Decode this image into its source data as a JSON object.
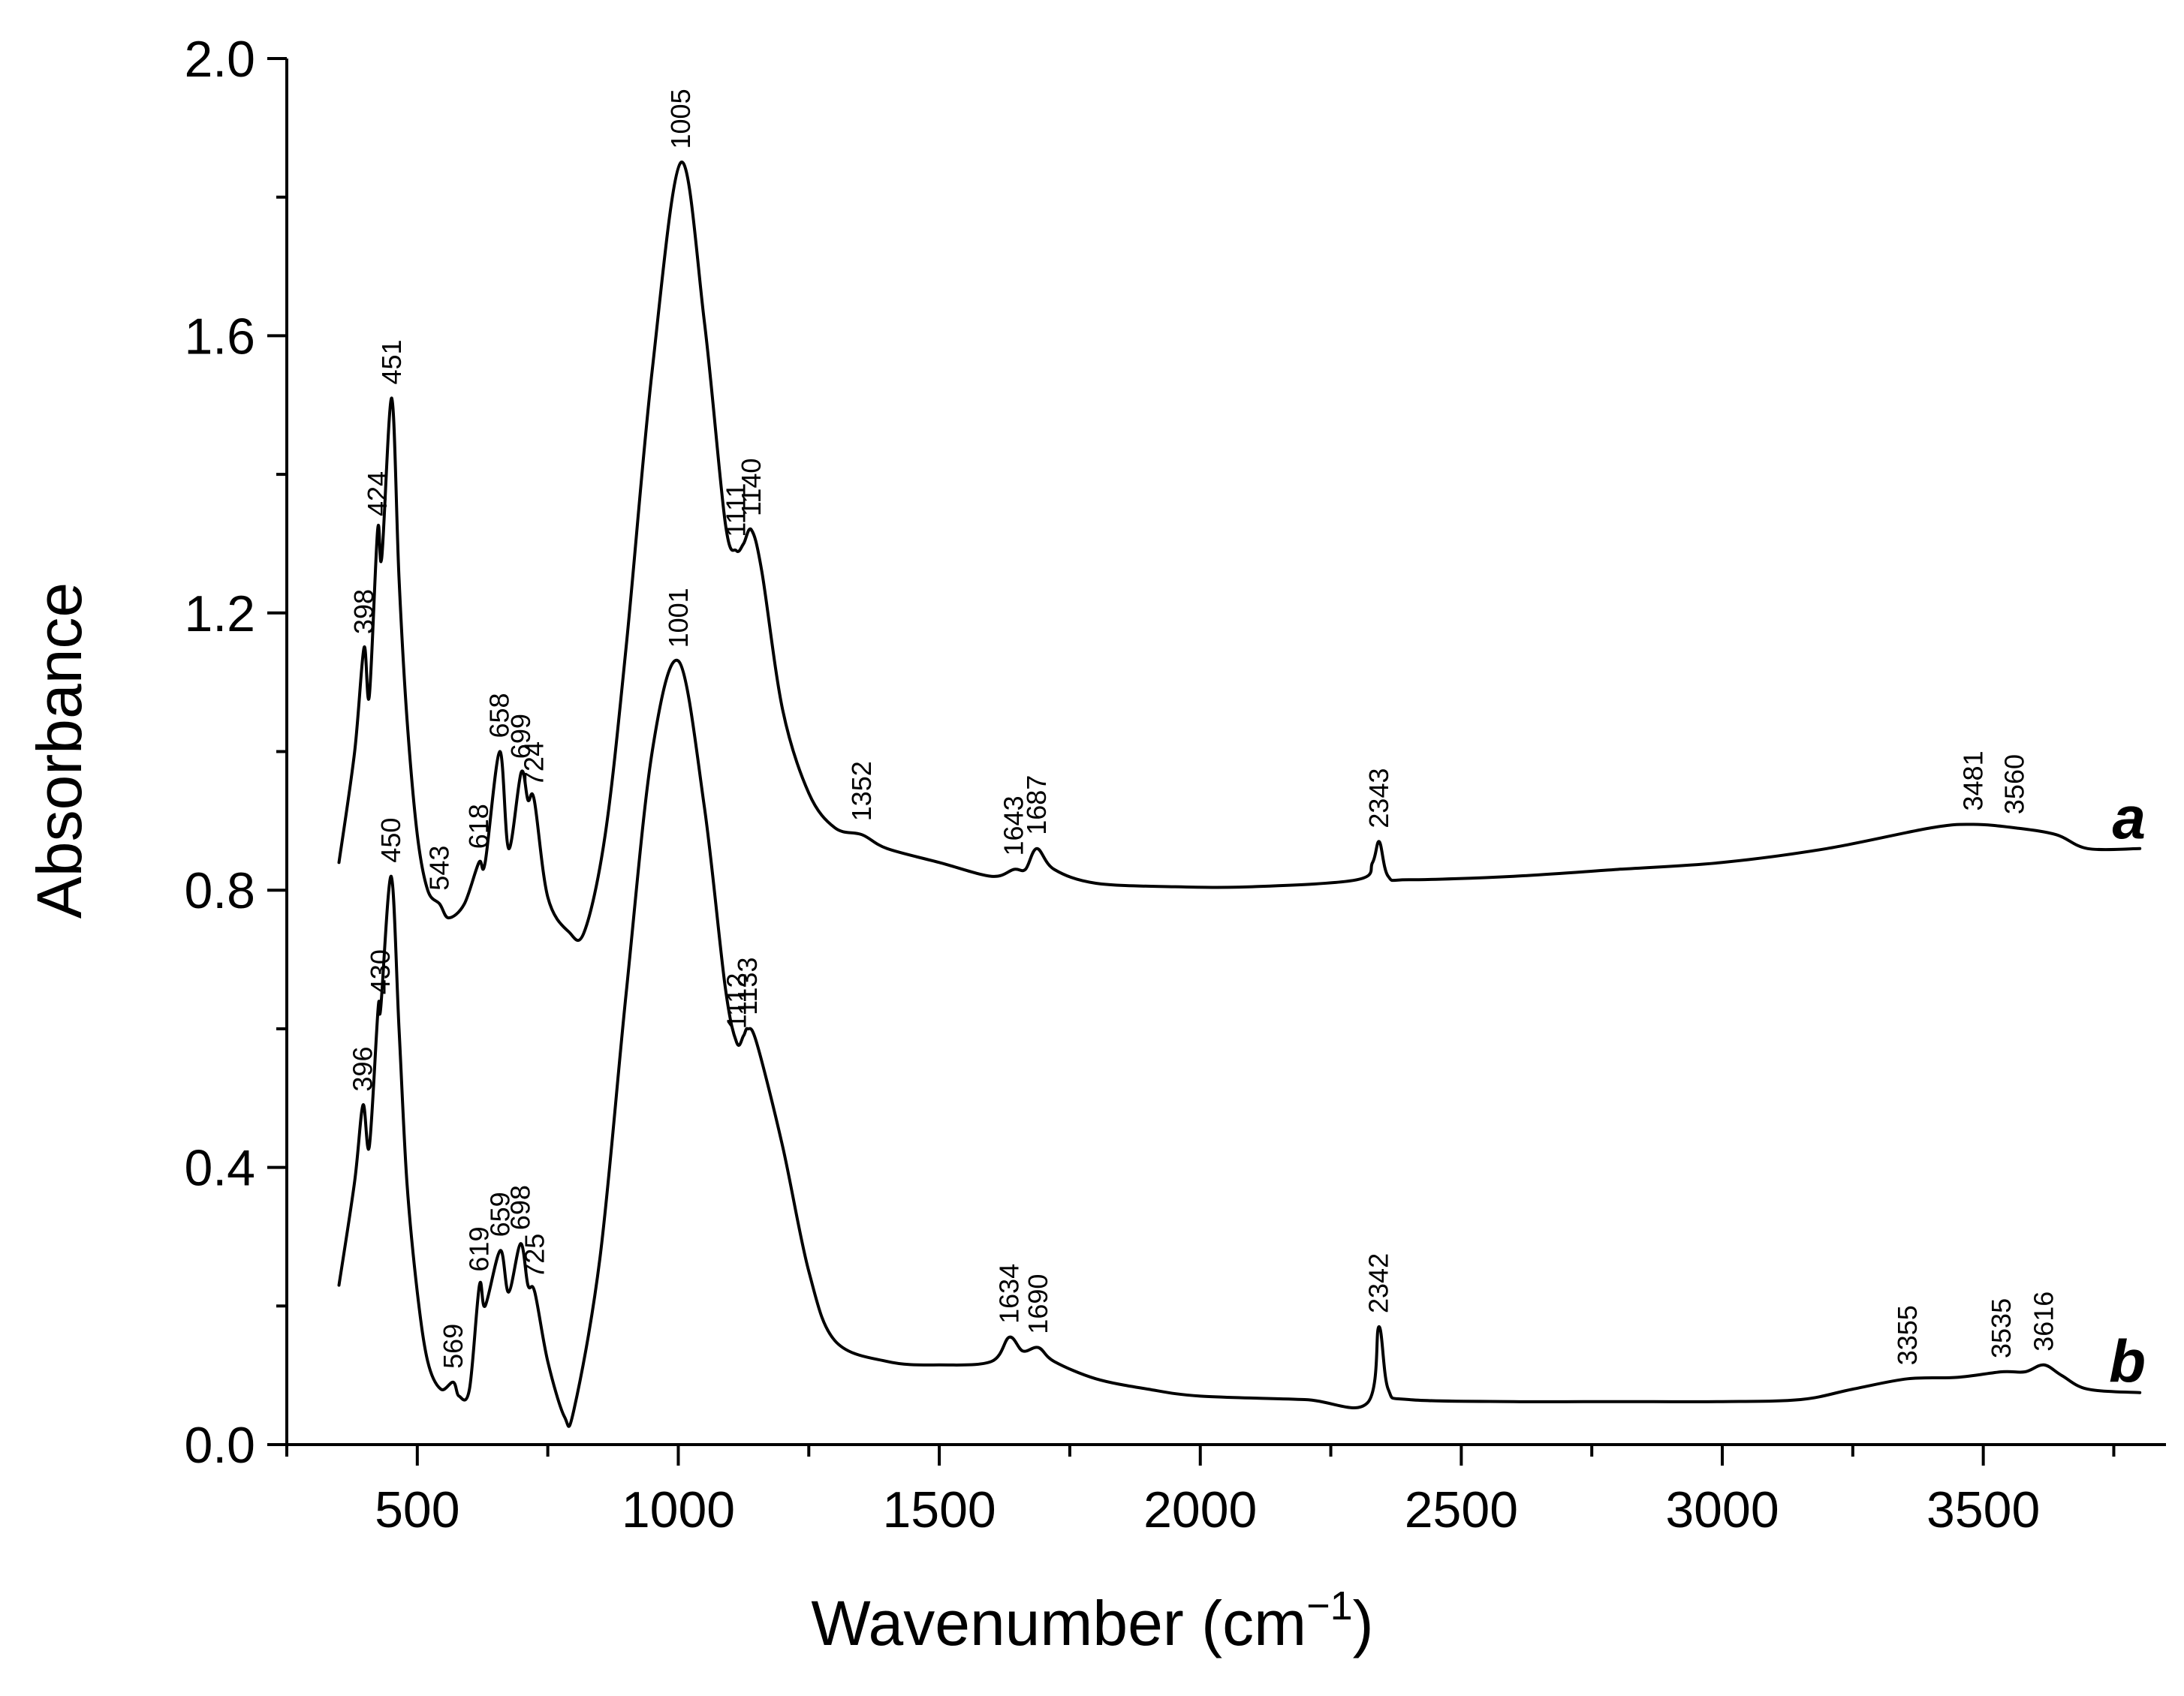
{
  "chart_data": {
    "type": "line",
    "title": "",
    "xlabel": "Wavenumber (cm",
    "xlabel_sup": "−1",
    "xlabel_close": ")",
    "ylabel": "Absorbance",
    "xlim": [
      250,
      3850
    ],
    "ylim": [
      0.0,
      2.0
    ],
    "x_ticks": [
      500,
      1000,
      1500,
      2000,
      2500,
      3000,
      3500
    ],
    "x_tick_labels": [
      "500",
      "1000",
      "1500",
      "2000",
      "2500",
      "3000",
      "3500"
    ],
    "y_ticks": [
      0.0,
      0.4,
      0.8,
      1.2,
      1.6,
      2.0
    ],
    "y_tick_labels": [
      "0.0",
      "0.4",
      "0.8",
      "1.2",
      "1.6",
      "2.0"
    ],
    "series": [
      {
        "name": "a",
        "label": "a",
        "x": [
          350,
          380,
          398,
          408,
          424,
          432,
          451,
          465,
          480,
          500,
          520,
          543,
          560,
          590,
          618,
          630,
          658,
          675,
          699,
          712,
          724,
          750,
          790,
          820,
          860,
          900,
          950,
          1005,
          1050,
          1090,
          1111,
          1125,
          1140,
          1160,
          1200,
          1250,
          1300,
          1352,
          1400,
          1500,
          1600,
          1643,
          1665,
          1687,
          1720,
          1800,
          1950,
          2100,
          2300,
          2330,
          2343,
          2360,
          2400,
          2600,
          2800,
          3000,
          3200,
          3400,
          3481,
          3560,
          3640,
          3700,
          3800
        ],
        "y": [
          0.84,
          1.0,
          1.15,
          1.08,
          1.32,
          1.28,
          1.51,
          1.25,
          1.05,
          0.88,
          0.8,
          0.78,
          0.76,
          0.78,
          0.84,
          0.84,
          1.0,
          0.86,
          0.97,
          0.93,
          0.93,
          0.79,
          0.74,
          0.74,
          0.88,
          1.15,
          1.55,
          1.85,
          1.62,
          1.33,
          1.29,
          1.3,
          1.32,
          1.26,
          1.06,
          0.94,
          0.89,
          0.88,
          0.86,
          0.84,
          0.82,
          0.83,
          0.83,
          0.86,
          0.83,
          0.81,
          0.805,
          0.805,
          0.815,
          0.84,
          0.87,
          0.82,
          0.815,
          0.82,
          0.83,
          0.84,
          0.86,
          0.89,
          0.895,
          0.89,
          0.88,
          0.86,
          0.86
        ],
        "peak_labels": [
          {
            "x": 398,
            "y": 1.15,
            "text": "398"
          },
          {
            "x": 424,
            "y": 1.32,
            "text": "424"
          },
          {
            "x": 451,
            "y": 1.51,
            "text": "451"
          },
          {
            "x": 543,
            "y": 0.78,
            "text": "543"
          },
          {
            "x": 618,
            "y": 0.84,
            "text": "618"
          },
          {
            "x": 658,
            "y": 1.0,
            "text": "658"
          },
          {
            "x": 699,
            "y": 0.97,
            "text": "699"
          },
          {
            "x": 724,
            "y": 0.93,
            "text": "724"
          },
          {
            "x": 1005,
            "y": 1.85,
            "text": "1005"
          },
          {
            "x": 1111,
            "y": 1.29,
            "text": "1111"
          },
          {
            "x": 1140,
            "y": 1.32,
            "text": "1140"
          },
          {
            "x": 1352,
            "y": 0.88,
            "text": "1352"
          },
          {
            "x": 1643,
            "y": 0.83,
            "text": "1643"
          },
          {
            "x": 1687,
            "y": 0.86,
            "text": "1687"
          },
          {
            "x": 2343,
            "y": 0.87,
            "text": "2343"
          },
          {
            "x": 3481,
            "y": 0.895,
            "text": "3481"
          },
          {
            "x": 3560,
            "y": 0.89,
            "text": "3560"
          }
        ]
      },
      {
        "name": "b",
        "label": "b",
        "x": [
          350,
          380,
          396,
          408,
          425,
          430,
          450,
          465,
          480,
          500,
          520,
          545,
          569,
          580,
          600,
          619,
          630,
          659,
          675,
          698,
          712,
          725,
          750,
          782,
          800,
          850,
          900,
          950,
          1001,
          1050,
          1090,
          1112,
          1125,
          1133,
          1150,
          1200,
          1250,
          1300,
          1400,
          1500,
          1600,
          1634,
          1660,
          1690,
          1720,
          1800,
          1900,
          2000,
          2200,
          2320,
          2342,
          2360,
          2400,
          2600,
          2800,
          3000,
          3150,
          3250,
          3355,
          3450,
          3535,
          3580,
          3616,
          3650,
          3700,
          3800
        ],
        "y": [
          0.23,
          0.38,
          0.49,
          0.43,
          0.63,
          0.63,
          0.82,
          0.6,
          0.38,
          0.22,
          0.12,
          0.08,
          0.09,
          0.07,
          0.08,
          0.23,
          0.2,
          0.28,
          0.22,
          0.29,
          0.23,
          0.22,
          0.12,
          0.04,
          0.05,
          0.27,
          0.65,
          1.0,
          1.13,
          0.92,
          0.66,
          0.58,
          0.59,
          0.6,
          0.58,
          0.43,
          0.25,
          0.15,
          0.12,
          0.115,
          0.12,
          0.155,
          0.135,
          0.14,
          0.12,
          0.095,
          0.08,
          0.07,
          0.065,
          0.06,
          0.17,
          0.08,
          0.065,
          0.062,
          0.062,
          0.062,
          0.065,
          0.08,
          0.095,
          0.097,
          0.105,
          0.105,
          0.115,
          0.1,
          0.08,
          0.075
        ],
        "peak_labels": [
          {
            "x": 396,
            "y": 0.49,
            "text": "396"
          },
          {
            "x": 430,
            "y": 0.63,
            "text": "430"
          },
          {
            "x": 450,
            "y": 0.82,
            "text": "450"
          },
          {
            "x": 569,
            "y": 0.09,
            "text": "569"
          },
          {
            "x": 619,
            "y": 0.23,
            "text": "619"
          },
          {
            "x": 659,
            "y": 0.28,
            "text": "659"
          },
          {
            "x": 698,
            "y": 0.29,
            "text": "698"
          },
          {
            "x": 725,
            "y": 0.22,
            "text": "725"
          },
          {
            "x": 1001,
            "y": 1.13,
            "text": "1001"
          },
          {
            "x": 1112,
            "y": 0.58,
            "text": "1112"
          },
          {
            "x": 1133,
            "y": 0.6,
            "text": "1133"
          },
          {
            "x": 1634,
            "y": 0.155,
            "text": "1634"
          },
          {
            "x": 1690,
            "y": 0.14,
            "text": "1690"
          },
          {
            "x": 2342,
            "y": 0.17,
            "text": "2342"
          },
          {
            "x": 3355,
            "y": 0.095,
            "text": "3355"
          },
          {
            "x": 3535,
            "y": 0.105,
            "text": "3535"
          },
          {
            "x": 3616,
            "y": 0.115,
            "text": "3616"
          }
        ]
      }
    ]
  }
}
